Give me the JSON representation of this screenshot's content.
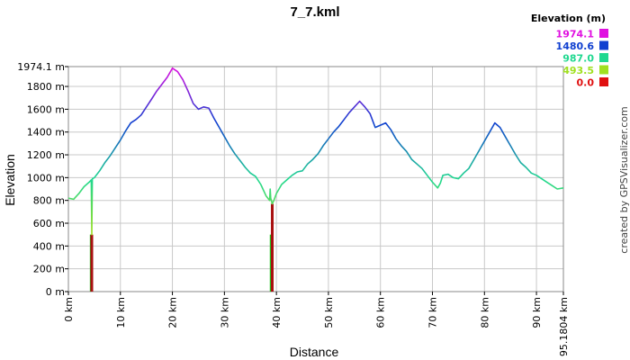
{
  "chart_data": {
    "type": "line",
    "title": "7_7.kml",
    "xlabel": "Distance",
    "ylabel": "Elevation",
    "xlim": [
      0,
      95.1804
    ],
    "ylim": [
      0,
      1974.1
    ],
    "x_tick_labels": [
      "0 km",
      "10 km",
      "20 km",
      "30 km",
      "40 km",
      "50 km",
      "60 km",
      "70 km",
      "80 km",
      "90 km",
      "95.1804 km"
    ],
    "x_tick_values": [
      0,
      10,
      20,
      30,
      40,
      50,
      60,
      70,
      80,
      90,
      95.1804
    ],
    "y_tick_labels": [
      "0 m",
      "200 m",
      "400 m",
      "600 m",
      "800 m",
      "1000 m",
      "1200 m",
      "1400 m",
      "1600 m",
      "1800 m",
      "1974.1 m"
    ],
    "y_tick_values": [
      0,
      200,
      400,
      600,
      800,
      1000,
      1200,
      1400,
      1600,
      1800,
      1974.1
    ],
    "grid": true,
    "legend": {
      "title": "Elevation (m)",
      "placement": "top-right",
      "items": [
        {
          "label": "1974.1",
          "color": "#e010e0"
        },
        {
          "label": "1480.6",
          "color": "#1040d0"
        },
        {
          "label": "987.0",
          "color": "#20d890"
        },
        {
          "label": "493.5",
          "color": "#a0e020"
        },
        {
          "label": "0.0",
          "color": "#e01010"
        }
      ]
    },
    "series": [
      {
        "x": [
          0,
          1,
          2,
          3,
          4,
          4.4,
          4.5,
          4.6,
          5,
          6,
          7,
          8,
          9,
          10,
          11,
          12,
          13,
          14,
          15,
          16,
          17,
          18,
          19,
          20,
          21,
          22,
          23,
          24,
          25,
          26,
          27,
          28,
          29,
          30,
          31,
          32,
          33,
          34,
          35,
          36,
          37,
          38,
          38.7,
          38.8,
          38.9,
          39.2,
          39.5,
          40,
          41,
          42,
          43,
          44,
          45,
          46,
          47,
          48,
          49,
          50,
          51,
          52,
          53,
          54,
          55,
          56,
          57,
          58,
          59,
          60,
          61,
          62,
          63,
          64,
          65,
          66,
          67,
          68,
          69,
          70,
          71,
          71.5,
          72,
          73,
          74,
          75,
          76,
          77,
          78,
          79,
          80,
          81,
          82,
          83,
          84,
          85,
          86,
          87,
          88,
          89,
          90,
          91,
          92,
          93,
          94,
          95.1804
        ],
        "values": [
          820,
          810,
          860,
          920,
          960,
          980,
          500,
          990,
          1000,
          1060,
          1130,
          1190,
          1260,
          1330,
          1410,
          1480,
          1510,
          1550,
          1620,
          1690,
          1760,
          1820,
          1880,
          1960,
          1930,
          1860,
          1760,
          1650,
          1600,
          1620,
          1610,
          1520,
          1440,
          1360,
          1280,
          1210,
          1150,
          1090,
          1040,
          1010,
          940,
          840,
          800,
          900,
          820,
          770,
          800,
          860,
          940,
          980,
          1020,
          1050,
          1060,
          1120,
          1160,
          1210,
          1280,
          1340,
          1400,
          1450,
          1510,
          1570,
          1620,
          1670,
          1620,
          1560,
          1440,
          1460,
          1480,
          1420,
          1340,
          1280,
          1230,
          1160,
          1120,
          1080,
          1020,
          960,
          910,
          950,
          1020,
          1030,
          1000,
          990,
          1040,
          1080,
          1160,
          1240,
          1320,
          1400,
          1480,
          1440,
          1360,
          1280,
          1200,
          1130,
          1090,
          1040,
          1020,
          990,
          960,
          930,
          900,
          910
        ]
      }
    ],
    "markers": [
      {
        "x": 4.5,
        "color": "#a81010"
      },
      {
        "x": 39.2,
        "color": "#a81010"
      }
    ],
    "green_markers": [
      {
        "x": 4.3
      },
      {
        "x": 38.9
      }
    ]
  },
  "credit": "created by GPSVisualizer.com"
}
